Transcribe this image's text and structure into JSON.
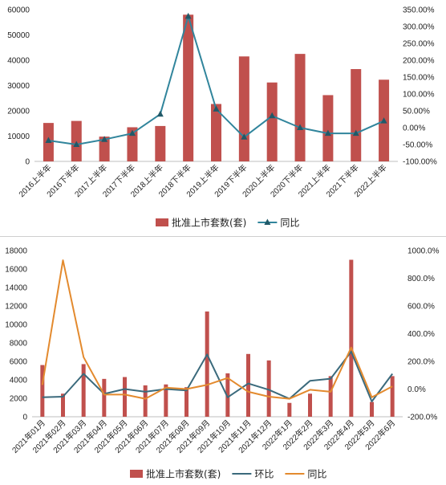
{
  "chart_data": [
    {
      "type": "bar",
      "title": "",
      "categories": [
        "2016上半年",
        "2016下半年",
        "2017上半年",
        "2017下半年",
        "2018上半年",
        "2018下半年",
        "2019上半年",
        "2019下半年",
        "2020上半年",
        "2020下半年",
        "2021上半年",
        "2021下半年",
        "2022上半年"
      ],
      "series": [
        {
          "name": "批准上市套数(套)",
          "type": "bar",
          "axis": "left",
          "color": "#c0504d",
          "values": [
            15200,
            16000,
            9800,
            13500,
            14000,
            58000,
            22700,
            41500,
            31200,
            42500,
            26200,
            36500,
            32300
          ]
        },
        {
          "name": "同比",
          "type": "line",
          "axis": "right",
          "marker": "triangle",
          "color": "#31859c",
          "values": [
            -38,
            -50,
            -35,
            -17,
            40,
            330,
            55,
            -28,
            35,
            0,
            -17,
            -17,
            20
          ]
        }
      ],
      "y_left": {
        "min": 0,
        "max": 60000,
        "step": 10000,
        "ticks": [
          "0",
          "10000",
          "20000",
          "30000",
          "40000",
          "50000",
          "60000"
        ]
      },
      "y_right": {
        "min": -100,
        "max": 350,
        "step": 50,
        "ticks": [
          "-100.00%",
          "-50.00%",
          "0.00%",
          "50.00%",
          "100.00%",
          "150.00%",
          "200.00%",
          "250.00%",
          "300.00%",
          "350.00%"
        ]
      },
      "grid": false,
      "legend": "bottom"
    },
    {
      "type": "bar",
      "title": "",
      "categories": [
        "2021年01月",
        "2021年02月",
        "2021年03月",
        "2021年04月",
        "2021年05月",
        "2021年06月",
        "2021年07月",
        "2021年08月",
        "2021年09月",
        "2021年10月",
        "2021年11月",
        "2021年12月",
        "2022年1月",
        "2022年2月",
        "2022年3月",
        "2022年4月",
        "2022年5月",
        "2022年6月"
      ],
      "series": [
        {
          "name": "批准上市套数(套)",
          "type": "bar",
          "axis": "left",
          "color": "#c0504d",
          "values": [
            5600,
            2500,
            5700,
            4100,
            4300,
            3400,
            3500,
            3200,
            11400,
            4700,
            6800,
            6100,
            1500,
            2500,
            4400,
            17000,
            1600,
            4400
          ]
        },
        {
          "name": "环比",
          "type": "line",
          "axis": "right",
          "color": "#3b6a7c",
          "values": [
            -60,
            -55,
            110,
            -35,
            0,
            -20,
            0,
            -10,
            250,
            -60,
            40,
            -5,
            -70,
            60,
            75,
            270,
            -90,
            110
          ]
        },
        {
          "name": "同比",
          "type": "line",
          "axis": "right",
          "color": "#e38a2e",
          "values": [
            30,
            930,
            230,
            -40,
            -40,
            -70,
            10,
            0,
            30,
            80,
            -20,
            -55,
            -70,
            -5,
            -20,
            300,
            -60,
            20
          ]
        }
      ],
      "y_left": {
        "min": 0,
        "max": 18000,
        "step": 2000,
        "ticks": [
          "0",
          "2000",
          "4000",
          "6000",
          "8000",
          "10000",
          "12000",
          "14000",
          "16000",
          "18000"
        ]
      },
      "y_right": {
        "min": -200,
        "max": 1000,
        "step": 200,
        "ticks": [
          "-200.0%",
          "0.0%",
          "200.0%",
          "400.0%",
          "600.0%",
          "800.0%",
          "1000.0%"
        ]
      },
      "grid": false,
      "legend": "bottom"
    }
  ]
}
